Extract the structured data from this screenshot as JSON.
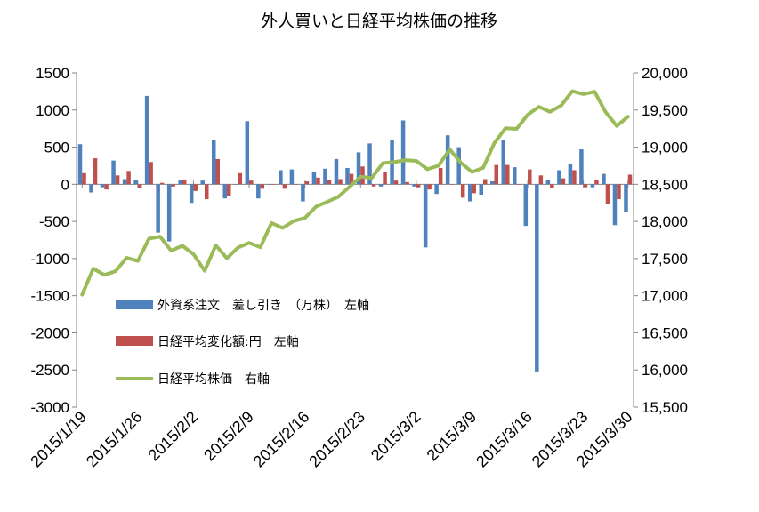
{
  "chart_data": {
    "type": "bar",
    "title": "外人買いと日経平均株価の推移",
    "left_axis": {
      "min": -3000,
      "max": 1500,
      "step": 500,
      "tick_labels": [
        "1500",
        "1000",
        "500",
        "0",
        "-500",
        "-1000",
        "-1500",
        "-2000",
        "-2500",
        "-3000"
      ]
    },
    "right_axis": {
      "min": 15500,
      "max": 20000,
      "step": 500,
      "tick_labels": [
        "20,000",
        "19,500",
        "19,000",
        "18,500",
        "18,000",
        "17,500",
        "17,000",
        "16,500",
        "16,000",
        "15,500"
      ]
    },
    "x_tick_labels": [
      "2015/1/19",
      "2015/1/26",
      "2015/2/2",
      "2015/2/9",
      "2015/2/16",
      "2015/2/23",
      "2015/3/2",
      "2015/3/9",
      "2015/3/16",
      "2015/3/23",
      "2015/3/30"
    ],
    "grid": false,
    "legend_position": "bottom-left",
    "x": [
      "2015/1/19",
      "2015/1/20",
      "2015/1/21",
      "2015/1/22",
      "2015/1/23",
      "2015/1/26",
      "2015/1/27",
      "2015/1/28",
      "2015/1/29",
      "2015/1/30",
      "2015/2/2",
      "2015/2/3",
      "2015/2/4",
      "2015/2/5",
      "2015/2/6",
      "2015/2/9",
      "2015/2/10",
      "2015/2/12",
      "2015/2/13",
      "2015/2/16",
      "2015/2/17",
      "2015/2/18",
      "2015/2/19",
      "2015/2/20",
      "2015/2/23",
      "2015/2/24",
      "2015/2/25",
      "2015/2/26",
      "2015/2/27",
      "2015/3/2",
      "2015/3/3",
      "2015/3/4",
      "2015/3/5",
      "2015/3/6",
      "2015/3/9",
      "2015/3/10",
      "2015/3/11",
      "2015/3/12",
      "2015/3/13",
      "2015/3/16",
      "2015/3/17",
      "2015/3/18",
      "2015/3/19",
      "2015/3/20",
      "2015/3/23",
      "2015/3/24",
      "2015/3/25",
      "2015/3/26",
      "2015/3/27",
      "2015/3/30"
    ],
    "series": [
      {
        "name": "外資系注文　差し引き　（万株）　左軸",
        "axis": "left",
        "kind": "bar",
        "color": "#4f81bd",
        "values": [
          540,
          -110,
          -40,
          320,
          70,
          60,
          1190,
          -650,
          -770,
          60,
          -250,
          50,
          600,
          -190,
          0,
          850,
          -190,
          0,
          190,
          200,
          -230,
          170,
          210,
          340,
          220,
          430,
          550,
          -30,
          600,
          860,
          -30,
          -850,
          -130,
          660,
          500,
          -230,
          -140,
          40,
          600,
          230,
          -560,
          -2520,
          60,
          190,
          280,
          470,
          -40,
          140,
          -550,
          -370
        ]
      },
      {
        "name": "日経平均変化額:円　左軸",
        "axis": "left",
        "kind": "bar",
        "color": "#c0504d",
        "values": [
          150,
          350,
          -70,
          120,
          180,
          -50,
          300,
          20,
          -30,
          60,
          -90,
          -200,
          340,
          -160,
          150,
          50,
          -60,
          0,
          -60,
          0,
          40,
          90,
          60,
          70,
          140,
          240,
          -30,
          160,
          50,
          30,
          -40,
          -70,
          220,
          0,
          -180,
          -120,
          70,
          260,
          260,
          0,
          200,
          120,
          -50,
          80,
          190,
          -40,
          60,
          -270,
          -200,
          130
        ]
      },
      {
        "name": "日経平均株価　右軸",
        "axis": "right",
        "kind": "line",
        "color": "#9bbb59",
        "values": [
          17014,
          17366,
          17280,
          17330,
          17511,
          17468,
          17768,
          17796,
          17606,
          17674,
          17558,
          17335,
          17678,
          17504,
          17648,
          17712,
          17652,
          17979,
          17913,
          18005,
          18047,
          18199,
          18264,
          18332,
          18466,
          18603,
          18585,
          18785,
          18798,
          18826,
          18815,
          18703,
          18752,
          18971,
          18790,
          18665,
          18723,
          19054,
          19254,
          19246,
          19437,
          19544,
          19476,
          19560,
          19754,
          19714,
          19746,
          19471,
          19285,
          19411
        ]
      }
    ]
  }
}
